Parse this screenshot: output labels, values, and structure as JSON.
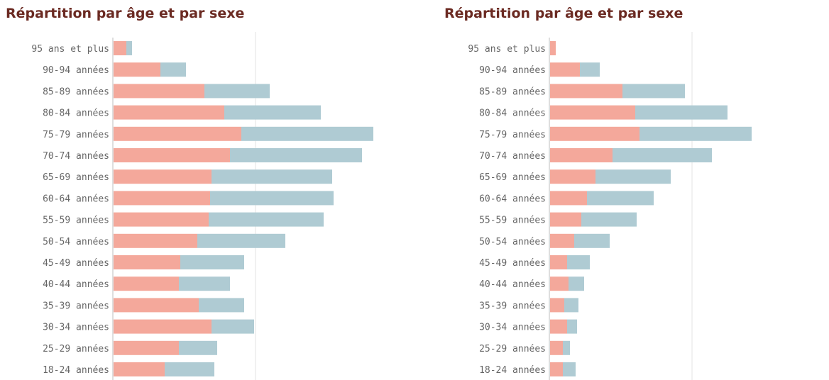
{
  "colors": {
    "female": "#f4a89b",
    "male": "#afcbd3",
    "title": "#6b2a22",
    "gridline": "#e3e3e3",
    "axis": "#bdbdbd",
    "label": "#666666"
  },
  "chart_data": [
    {
      "type": "bar",
      "orientation": "horizontal",
      "stacked": true,
      "title": "Répartition par âge et par sexe",
      "categories": [
        "95 ans et plus",
        "90-94 années",
        "85-89 années",
        "80-84 années",
        "75-79 années",
        "70-74 années",
        "65-69 années",
        "60-64 années",
        "55-59 années",
        "50-54 années",
        "45-49 années",
        "40-44 années",
        "35-39 années",
        "30-34 années",
        "25-29 années",
        "18-24 années"
      ],
      "series": [
        {
          "color": "#f4a89b",
          "values": [
            9,
            33,
            64,
            78,
            90,
            82,
            69,
            68,
            67,
            59,
            47,
            46,
            60,
            69,
            46,
            36
          ]
        },
        {
          "color": "#afcbd3",
          "values": [
            4,
            18,
            46,
            68,
            93,
            93,
            85,
            87,
            81,
            62,
            45,
            36,
            32,
            30,
            27,
            35
          ]
        }
      ],
      "xlim": [
        0,
        200
      ],
      "grid": true,
      "legend": "none"
    },
    {
      "type": "bar",
      "orientation": "horizontal",
      "stacked": true,
      "title": "Répartition par âge et par sexe",
      "categories": [
        "95 ans et plus",
        "90-94 années",
        "85-89 années",
        "80-84 années",
        "75-79 années",
        "70-74 années",
        "65-69 années",
        "60-64 années",
        "55-59 années",
        "50-54 années",
        "45-49 années",
        "40-44 années",
        "35-39 années",
        "30-34 années",
        "25-29 années",
        "18-24 années"
      ],
      "series": [
        {
          "color": "#f4a89b",
          "values": [
            4,
            21,
            51,
            60,
            63,
            44,
            32,
            26,
            22,
            17,
            12,
            13,
            10,
            12,
            9,
            9
          ]
        },
        {
          "color": "#afcbd3",
          "values": [
            0,
            14,
            44,
            65,
            79,
            70,
            53,
            47,
            39,
            25,
            16,
            11,
            10,
            7,
            5,
            9
          ]
        }
      ],
      "xlim": [
        0,
        200
      ],
      "grid": true,
      "legend": "none"
    }
  ]
}
